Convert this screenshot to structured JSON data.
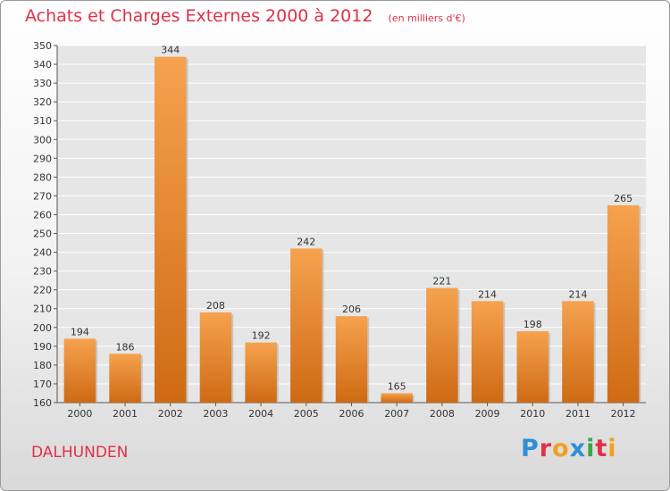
{
  "chart_data": {
    "type": "bar",
    "title": "Achats et Charges Externes 2000 à 2012",
    "subtitle": "(en milliers d'€)",
    "categories": [
      "2000",
      "2001",
      "2002",
      "2003",
      "2004",
      "2005",
      "2006",
      "2007",
      "2008",
      "2009",
      "2010",
      "2011",
      "2012"
    ],
    "values": [
      194,
      186,
      344,
      208,
      192,
      242,
      206,
      165,
      221,
      214,
      198,
      214,
      265
    ],
    "xlabel": "",
    "ylabel": "",
    "ylim": [
      160,
      350
    ],
    "ytick_step": 10,
    "grid": true,
    "colors": {
      "bar_light": "#f6a24e",
      "bar_dark": "#cf6a14",
      "grid": "#ffffff",
      "axis": "#555555"
    }
  },
  "footer": {
    "commune": "DALHUNDEN"
  },
  "logo": {
    "letters": [
      "P",
      "r",
      "o",
      "x",
      "i",
      "t",
      "i"
    ],
    "colors": [
      "#2f8fd6",
      "#e0304a",
      "#f0a020",
      "#2f8fd6",
      "#3aa845",
      "#e0304a",
      "#f0a020"
    ]
  }
}
